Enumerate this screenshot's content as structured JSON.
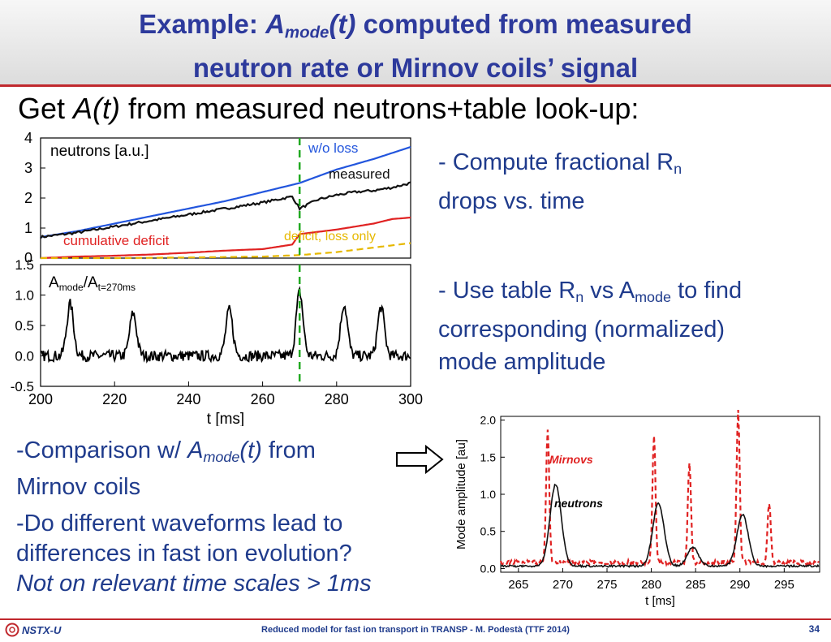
{
  "slide": {
    "title_pre": "Example: ",
    "title_A": "A",
    "title_sub": "mode",
    "title_t": "(t)",
    "title_rest1": " computed from measured",
    "title_line2": "neutron rate or Mirnov coils’ signal",
    "intro_pre": "Get ",
    "intro_em": "A(t)",
    "intro_post": " from measured neutrons+table look-up:",
    "bullet1_a": "- Compute fractional R",
    "bullet1_sub": "n",
    "bullet1_b": "drops vs. time",
    "bullet2_a": "- Use table R",
    "bullet2_sub": "n",
    "bullet2_mid": " vs A",
    "bullet2_sub2": "mode",
    "bullet2_b": " to find",
    "bullet2_c": "corresponding (normalized)",
    "bullet2_d": "mode amplitude",
    "comp_pre": "-Comparison w/ ",
    "comp_A": "A",
    "comp_sub": "mode",
    "comp_t": "(t)",
    "comp_post": " from",
    "comp_line2": "Mirnov coils",
    "q_line1": "-Do different  waveforms lead to",
    "q_line2": "differences in fast ion evolution?",
    "q_line3": "Not on relevant time scales > 1ms",
    "footer": "Reduced model for fast ion transport in TRANSP - M. Podestà (TTF 2014)",
    "page": "34",
    "logo": "NSTX-U"
  },
  "colors": {
    "title": "#2d3a9c",
    "bullet": "#1f3b8c",
    "accent_red": "#c0282d",
    "blue": "#2255dd",
    "red": "#e02222",
    "gold": "#e6b800",
    "green": "#22aa22"
  },
  "chart_data": [
    {
      "type": "line",
      "panel": "top-left",
      "title": "",
      "ylabel_text": "neutrons [a.u.]",
      "xlim": [
        200,
        300
      ],
      "ylim": [
        0,
        4
      ],
      "yticks": [
        "0",
        "1",
        "2",
        "3",
        "4"
      ],
      "vline_x": 270,
      "series": [
        {
          "name": "w/o loss",
          "color": "#2255dd",
          "x": [
            200,
            210,
            220,
            230,
            240,
            250,
            260,
            270,
            280,
            290,
            300
          ],
          "y": [
            0.7,
            0.9,
            1.15,
            1.4,
            1.65,
            1.9,
            2.2,
            2.5,
            2.95,
            3.3,
            3.7
          ]
        },
        {
          "name": "measured",
          "color": "#111111",
          "x": [
            200,
            210,
            220,
            230,
            240,
            250,
            260,
            268,
            270,
            275,
            280,
            285,
            290,
            295,
            300
          ],
          "y": [
            0.7,
            0.85,
            1.05,
            1.25,
            1.45,
            1.65,
            1.85,
            2.05,
            1.65,
            1.95,
            2.1,
            2.2,
            2.25,
            2.35,
            2.5
          ]
        },
        {
          "name": "cumulative deficit",
          "color": "#e02222",
          "x": [
            200,
            210,
            220,
            230,
            240,
            250,
            260,
            268,
            270,
            280,
            285,
            290,
            295,
            300
          ],
          "y": [
            0.0,
            0.05,
            0.08,
            0.12,
            0.18,
            0.25,
            0.3,
            0.45,
            0.8,
            0.95,
            1.05,
            1.15,
            1.3,
            1.35
          ]
        },
        {
          "name": "deficit, loss only",
          "color": "#e6b800",
          "x": [
            200,
            220,
            240,
            260,
            270,
            280,
            290,
            300
          ],
          "y": [
            0.0,
            0.0,
            0.02,
            0.05,
            0.1,
            0.2,
            0.35,
            0.5
          ]
        }
      ]
    },
    {
      "type": "line",
      "panel": "bottom-left",
      "ylabel_text_A": "A",
      "ylabel_sub1": "mode",
      "ylabel_mid": "/A",
      "ylabel_sub2": "t=270ms",
      "xlabel": "t  [ms]",
      "xlim": [
        200,
        300
      ],
      "ylim": [
        -0.5,
        1.5
      ],
      "yticks": [
        "-0.5",
        "0.0",
        "0.5",
        "1.0",
        "1.5"
      ],
      "xticks": [
        "200",
        "220",
        "240",
        "260",
        "280",
        "300"
      ],
      "vline_x": 270,
      "peaks_x": [
        208,
        225,
        251,
        270,
        282,
        292
      ],
      "peaks_y": [
        0.85,
        0.7,
        0.75,
        1.05,
        0.85,
        0.8
      ],
      "baseline": 0.0
    },
    {
      "type": "line",
      "panel": "bottom-right",
      "xlabel": "t [ms]",
      "ylabel": "Mode amplitude [au]",
      "xlim": [
        263,
        299
      ],
      "ylim": [
        -0.05,
        2.05
      ],
      "yticks": [
        "0.0",
        "0.5",
        "1.0",
        "1.5",
        "2.0"
      ],
      "xticks": [
        "265",
        "270",
        "275",
        "280",
        "285",
        "290",
        "295"
      ],
      "series": [
        {
          "name": "Mirnovs",
          "color": "#e02222",
          "dash": true,
          "spikes_x": [
            268.3,
            280.3,
            284.3,
            289.8,
            293.3
          ],
          "spikes_y": [
            1.8,
            1.7,
            1.35,
            2.05,
            0.8
          ]
        },
        {
          "name": "neutrons",
          "color": "#111111",
          "dash": false,
          "peaks_x": [
            269.2,
            280.8,
            284.7,
            290.3
          ],
          "peaks_y": [
            1.1,
            0.85,
            0.25,
            0.7
          ]
        }
      ]
    }
  ]
}
